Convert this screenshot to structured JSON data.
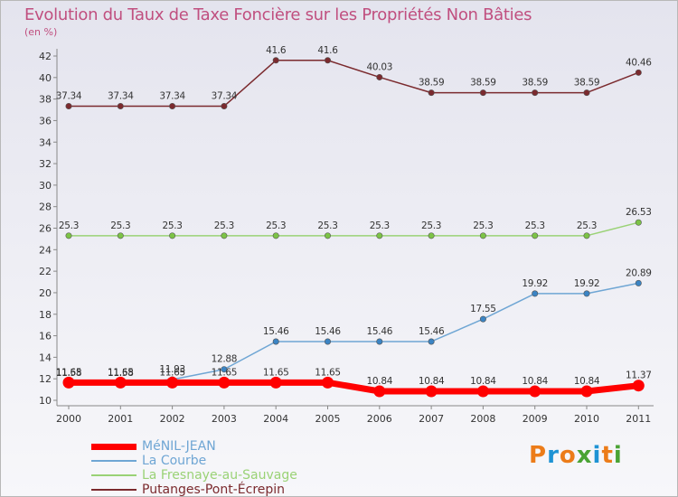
{
  "header": {
    "title": "Evolution du Taux de Taxe Foncière sur les Propriétés Non Bâties",
    "unit": "(en %)"
  },
  "logo": {
    "letters": [
      "P",
      "r",
      "o",
      "x",
      "i",
      "t",
      "i"
    ],
    "colors": [
      "#ec7c19",
      "#1e93d4",
      "#ec7c19",
      "#4aa334",
      "#1e93d4",
      "#ec7c19",
      "#4aa334"
    ]
  },
  "colors": {
    "title": "#c04f7f",
    "axis_text": "#333333",
    "grid_tick": "#c0c0c0"
  },
  "chart_data": {
    "type": "line",
    "title": "Evolution du Taux de Taxe Foncière sur les Propriétés Non Bâties",
    "ylabel": "(en %)",
    "xlabel": "",
    "categories": [
      "2000",
      "2001",
      "2002",
      "2003",
      "2004",
      "2005",
      "2006",
      "2007",
      "2008",
      "2009",
      "2010",
      "2011"
    ],
    "ylim": [
      10,
      42
    ],
    "yticks": [
      10,
      12,
      14,
      16,
      18,
      20,
      22,
      24,
      26,
      28,
      30,
      32,
      34,
      36,
      38,
      40,
      42
    ],
    "legend_position": "bottom-left",
    "series": [
      {
        "name": "Putanges-Pont-Écrepin",
        "color": "#7b2a2e",
        "marker_color": "#7b2a2e",
        "values": [
          37.34,
          37.34,
          37.34,
          37.34,
          41.6,
          41.6,
          40.03,
          38.59,
          38.59,
          38.59,
          38.59,
          40.46
        ],
        "labels": [
          "37.34",
          "37.34",
          "37.34",
          "37.34",
          "41.6",
          "41.6",
          "40.03",
          "38.59",
          "38.59",
          "38.59",
          "38.59",
          "40.46"
        ]
      },
      {
        "name": "La Fresnaye-au-Sauvage",
        "color": "#9ad276",
        "marker_color": "#7cc346",
        "values": [
          25.3,
          25.3,
          25.3,
          25.3,
          25.3,
          25.3,
          25.3,
          25.3,
          25.3,
          25.3,
          25.3,
          26.53
        ],
        "labels": [
          "25.3",
          "25.3",
          "25.3",
          "25.3",
          "25.3",
          "25.3",
          "25.3",
          "25.3",
          "25.3",
          "25.3",
          "25.3",
          "26.53"
        ]
      },
      {
        "name": "La Courbe",
        "color": "#6fa6d4",
        "marker_color": "#3b84c4",
        "values": [
          11.58,
          11.58,
          11.93,
          12.88,
          15.46,
          15.46,
          15.46,
          15.46,
          17.55,
          19.92,
          19.92,
          20.89
        ],
        "labels": [
          "11.58",
          "11.58",
          "11.93",
          "12.88",
          "15.46",
          "15.46",
          "15.46",
          "15.46",
          "17.55",
          "19.92",
          "19.92",
          "20.89"
        ]
      },
      {
        "name": "MéNIL-JEAN",
        "color": "#ff0000",
        "marker_color": "#ff0000",
        "values": [
          11.65,
          11.65,
          11.65,
          11.65,
          11.65,
          11.65,
          10.84,
          10.84,
          10.84,
          10.84,
          10.84,
          11.37
        ],
        "labels": [
          "11.65",
          "11.65",
          "11.65",
          "11.65",
          "11.65",
          "11.65",
          "10.84",
          "10.84",
          "10.84",
          "10.84",
          "10.84",
          "11.37"
        ]
      }
    ]
  },
  "legend": {
    "items": [
      {
        "label": "MéNIL-JEAN",
        "color": "#ff0000",
        "weight": "heavy"
      },
      {
        "label": "La Courbe",
        "color": "#6fa6d4",
        "weight": "light"
      },
      {
        "label": "La Fresnaye-au-Sauvage",
        "color": "#9ad276",
        "weight": "light"
      },
      {
        "label": "Putanges-Pont-Écrepin",
        "color": "#7b2a2e",
        "weight": "light"
      }
    ]
  }
}
